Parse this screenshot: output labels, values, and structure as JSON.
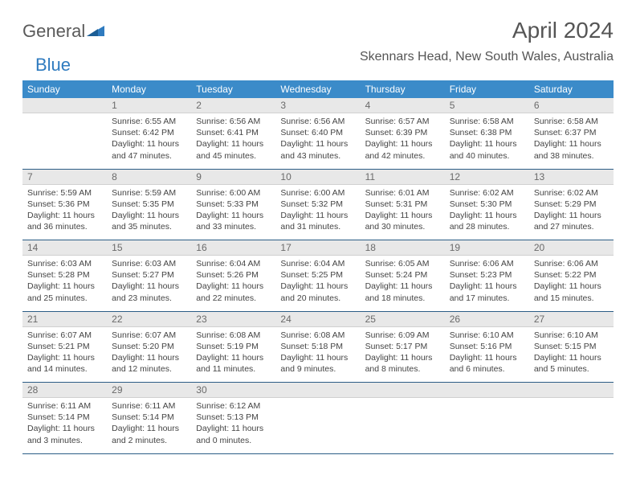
{
  "brand": {
    "name1": "General",
    "name2": "Blue"
  },
  "title": "April 2024",
  "location": "Skennars Head, New South Wales, Australia",
  "colors": {
    "header_bg": "#3b8bc9",
    "header_text": "#ffffff",
    "daynum_bg": "#e8e8e8",
    "daynum_text": "#6a6a6a",
    "rule": "#2c5d86",
    "body_text": "#444444",
    "title_text": "#555555"
  },
  "day_names": [
    "Sunday",
    "Monday",
    "Tuesday",
    "Wednesday",
    "Thursday",
    "Friday",
    "Saturday"
  ],
  "weeks": [
    [
      {
        "n": "",
        "sr": "",
        "ss": "",
        "dl": ""
      },
      {
        "n": "1",
        "sr": "Sunrise: 6:55 AM",
        "ss": "Sunset: 6:42 PM",
        "dl": "Daylight: 11 hours and 47 minutes."
      },
      {
        "n": "2",
        "sr": "Sunrise: 6:56 AM",
        "ss": "Sunset: 6:41 PM",
        "dl": "Daylight: 11 hours and 45 minutes."
      },
      {
        "n": "3",
        "sr": "Sunrise: 6:56 AM",
        "ss": "Sunset: 6:40 PM",
        "dl": "Daylight: 11 hours and 43 minutes."
      },
      {
        "n": "4",
        "sr": "Sunrise: 6:57 AM",
        "ss": "Sunset: 6:39 PM",
        "dl": "Daylight: 11 hours and 42 minutes."
      },
      {
        "n": "5",
        "sr": "Sunrise: 6:58 AM",
        "ss": "Sunset: 6:38 PM",
        "dl": "Daylight: 11 hours and 40 minutes."
      },
      {
        "n": "6",
        "sr": "Sunrise: 6:58 AM",
        "ss": "Sunset: 6:37 PM",
        "dl": "Daylight: 11 hours and 38 minutes."
      }
    ],
    [
      {
        "n": "7",
        "sr": "Sunrise: 5:59 AM",
        "ss": "Sunset: 5:36 PM",
        "dl": "Daylight: 11 hours and 36 minutes."
      },
      {
        "n": "8",
        "sr": "Sunrise: 5:59 AM",
        "ss": "Sunset: 5:35 PM",
        "dl": "Daylight: 11 hours and 35 minutes."
      },
      {
        "n": "9",
        "sr": "Sunrise: 6:00 AM",
        "ss": "Sunset: 5:33 PM",
        "dl": "Daylight: 11 hours and 33 minutes."
      },
      {
        "n": "10",
        "sr": "Sunrise: 6:00 AM",
        "ss": "Sunset: 5:32 PM",
        "dl": "Daylight: 11 hours and 31 minutes."
      },
      {
        "n": "11",
        "sr": "Sunrise: 6:01 AM",
        "ss": "Sunset: 5:31 PM",
        "dl": "Daylight: 11 hours and 30 minutes."
      },
      {
        "n": "12",
        "sr": "Sunrise: 6:02 AM",
        "ss": "Sunset: 5:30 PM",
        "dl": "Daylight: 11 hours and 28 minutes."
      },
      {
        "n": "13",
        "sr": "Sunrise: 6:02 AM",
        "ss": "Sunset: 5:29 PM",
        "dl": "Daylight: 11 hours and 27 minutes."
      }
    ],
    [
      {
        "n": "14",
        "sr": "Sunrise: 6:03 AM",
        "ss": "Sunset: 5:28 PM",
        "dl": "Daylight: 11 hours and 25 minutes."
      },
      {
        "n": "15",
        "sr": "Sunrise: 6:03 AM",
        "ss": "Sunset: 5:27 PM",
        "dl": "Daylight: 11 hours and 23 minutes."
      },
      {
        "n": "16",
        "sr": "Sunrise: 6:04 AM",
        "ss": "Sunset: 5:26 PM",
        "dl": "Daylight: 11 hours and 22 minutes."
      },
      {
        "n": "17",
        "sr": "Sunrise: 6:04 AM",
        "ss": "Sunset: 5:25 PM",
        "dl": "Daylight: 11 hours and 20 minutes."
      },
      {
        "n": "18",
        "sr": "Sunrise: 6:05 AM",
        "ss": "Sunset: 5:24 PM",
        "dl": "Daylight: 11 hours and 18 minutes."
      },
      {
        "n": "19",
        "sr": "Sunrise: 6:06 AM",
        "ss": "Sunset: 5:23 PM",
        "dl": "Daylight: 11 hours and 17 minutes."
      },
      {
        "n": "20",
        "sr": "Sunrise: 6:06 AM",
        "ss": "Sunset: 5:22 PM",
        "dl": "Daylight: 11 hours and 15 minutes."
      }
    ],
    [
      {
        "n": "21",
        "sr": "Sunrise: 6:07 AM",
        "ss": "Sunset: 5:21 PM",
        "dl": "Daylight: 11 hours and 14 minutes."
      },
      {
        "n": "22",
        "sr": "Sunrise: 6:07 AM",
        "ss": "Sunset: 5:20 PM",
        "dl": "Daylight: 11 hours and 12 minutes."
      },
      {
        "n": "23",
        "sr": "Sunrise: 6:08 AM",
        "ss": "Sunset: 5:19 PM",
        "dl": "Daylight: 11 hours and 11 minutes."
      },
      {
        "n": "24",
        "sr": "Sunrise: 6:08 AM",
        "ss": "Sunset: 5:18 PM",
        "dl": "Daylight: 11 hours and 9 minutes."
      },
      {
        "n": "25",
        "sr": "Sunrise: 6:09 AM",
        "ss": "Sunset: 5:17 PM",
        "dl": "Daylight: 11 hours and 8 minutes."
      },
      {
        "n": "26",
        "sr": "Sunrise: 6:10 AM",
        "ss": "Sunset: 5:16 PM",
        "dl": "Daylight: 11 hours and 6 minutes."
      },
      {
        "n": "27",
        "sr": "Sunrise: 6:10 AM",
        "ss": "Sunset: 5:15 PM",
        "dl": "Daylight: 11 hours and 5 minutes."
      }
    ],
    [
      {
        "n": "28",
        "sr": "Sunrise: 6:11 AM",
        "ss": "Sunset: 5:14 PM",
        "dl": "Daylight: 11 hours and 3 minutes."
      },
      {
        "n": "29",
        "sr": "Sunrise: 6:11 AM",
        "ss": "Sunset: 5:14 PM",
        "dl": "Daylight: 11 hours and 2 minutes."
      },
      {
        "n": "30",
        "sr": "Sunrise: 6:12 AM",
        "ss": "Sunset: 5:13 PM",
        "dl": "Daylight: 11 hours and 0 minutes."
      },
      {
        "n": "",
        "sr": "",
        "ss": "",
        "dl": ""
      },
      {
        "n": "",
        "sr": "",
        "ss": "",
        "dl": ""
      },
      {
        "n": "",
        "sr": "",
        "ss": "",
        "dl": ""
      },
      {
        "n": "",
        "sr": "",
        "ss": "",
        "dl": ""
      }
    ]
  ]
}
